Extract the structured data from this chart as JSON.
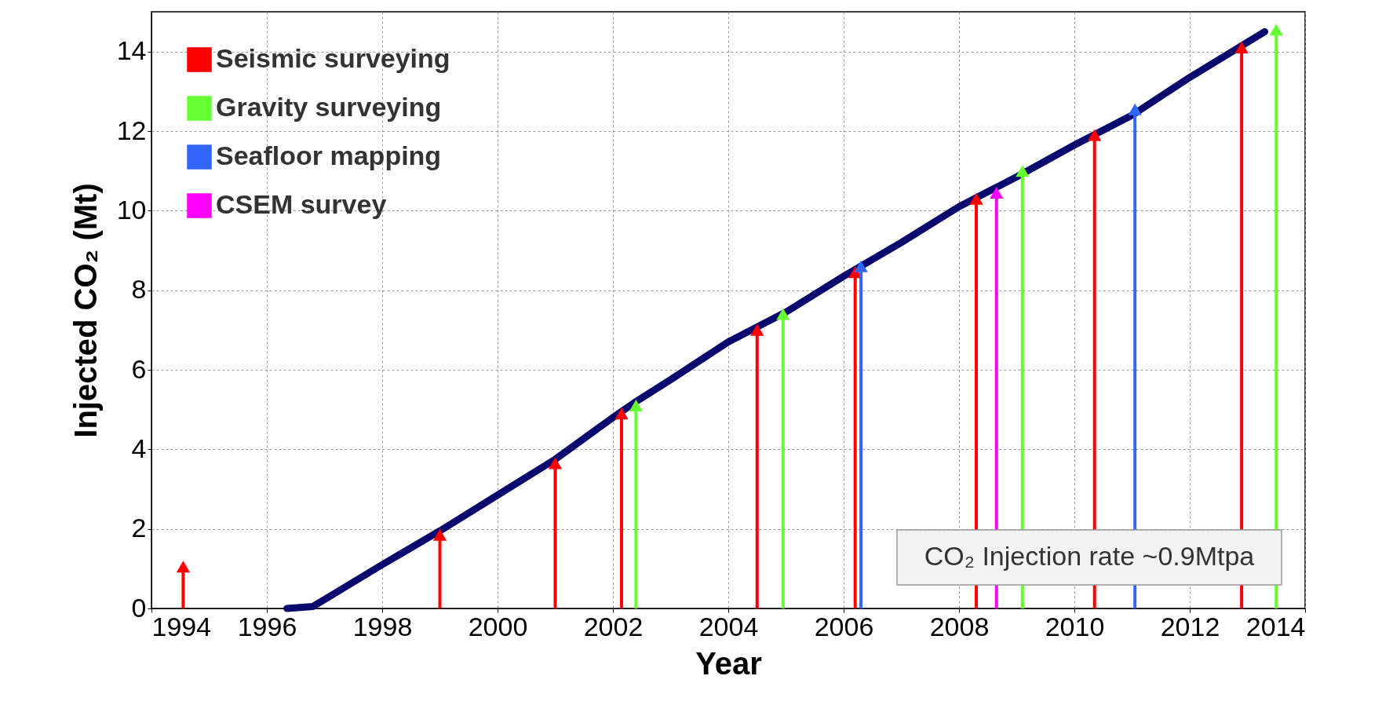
{
  "chart_data": {
    "type": "line",
    "xlabel": "Year",
    "ylabel": "Injected CO₂  (Mt)",
    "xlim": [
      1994,
      2014
    ],
    "xticks": [
      1994,
      1996,
      1998,
      2000,
      2002,
      2004,
      2006,
      2008,
      2010,
      2012,
      2014
    ],
    "ylim": [
      0,
      15
    ],
    "yticks": [
      0,
      2,
      4,
      6,
      8,
      10,
      12,
      14
    ],
    "grid": true,
    "legend": "top left",
    "annotations": [
      "CO₂ Injection rate ~0.9Mtpa"
    ],
    "series": [
      {
        "color": "#0a0a6e",
        "x": [
          1996.35,
          1996.8,
          1997.2,
          1998,
          1999,
          2000,
          2001,
          2002,
          2002.4,
          2003,
          2004,
          2005,
          2006,
          2007,
          2008,
          2009,
          2010,
          2011,
          2012,
          2013.3
        ],
        "values": [
          0,
          0.05,
          0.4,
          1.1,
          1.95,
          2.85,
          3.75,
          4.8,
          5.2,
          5.75,
          6.7,
          7.45,
          8.35,
          9.2,
          10.1,
          10.85,
          11.65,
          12.4,
          13.35,
          14.5
        ]
      },
      {
        "type": "lollipop",
        "name": "Seismic surveying",
        "marker": "triangle",
        "color": "#ff0000",
        "x": [
          1994.55,
          1999,
          2001,
          2002.15,
          2004.5,
          2006.2,
          2008.3,
          2010.35,
          2012.9
        ],
        "values": [
          1.05,
          1.85,
          3.65,
          4.9,
          7,
          8.45,
          10.3,
          11.9,
          14.1
        ]
      },
      {
        "type": "lollipop",
        "name": "Gravity surveying",
        "marker": "triangle",
        "color": "#66ff33",
        "x": [
          2002.4,
          2004.95,
          2009.1,
          2013.5
        ],
        "values": [
          5.1,
          7.4,
          11,
          14.55
        ]
      },
      {
        "type": "lollipop",
        "name": "Seafloor mapping",
        "marker": "triangle",
        "color": "#3366ff",
        "x": [
          2006.3,
          2011.05
        ],
        "values": [
          8.6,
          12.55
        ]
      },
      {
        "type": "lollipop",
        "name": "CSEM survey",
        "marker": "triangle",
        "color": "#ff00ff",
        "x": [
          2008.65
        ],
        "values": [
          10.45
        ]
      }
    ]
  }
}
